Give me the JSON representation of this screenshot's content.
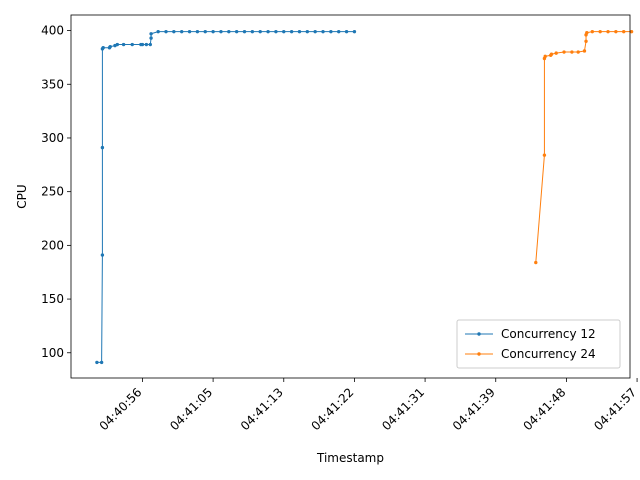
{
  "chart_data": {
    "type": "line",
    "title": "",
    "xlabel": "Timestamp",
    "ylabel": "CPU",
    "xlim": [
      -2.6,
      68.6
    ],
    "ylim": [
      76.5,
      414.5
    ],
    "legend_position": "lower-right",
    "grid": false,
    "x_ticks": [
      {
        "value": 6.5,
        "label": "04:40:56"
      },
      {
        "value": 15.5,
        "label": "04:41:05"
      },
      {
        "value": 24.5,
        "label": "04:41:13"
      },
      {
        "value": 33.5,
        "label": "04:41:22"
      },
      {
        "value": 42.5,
        "label": "04:41:31"
      },
      {
        "value": 51.5,
        "label": "04:41:39"
      },
      {
        "value": 60.5,
        "label": "04:41:48"
      },
      {
        "value": 69.5,
        "label": "04:41:57"
      }
    ],
    "y_ticks": [
      100,
      150,
      200,
      250,
      300,
      350,
      400
    ],
    "series": [
      {
        "name": "Concurrency 12",
        "color": "#1f77b4",
        "x": [
          0.7,
          1.3,
          1.4,
          1.4,
          1.4,
          1.5,
          2.3,
          2.4,
          3.0,
          3.3,
          4.1,
          5.2,
          6.3,
          6.5,
          7.0,
          7.5,
          7.6,
          7.6,
          8.5,
          9.5,
          10.5,
          11.5,
          12.5,
          13.5,
          14.5,
          15.5,
          16.5,
          17.5,
          18.5,
          19.5,
          20.5,
          21.5,
          22.5,
          23.5,
          24.5,
          25.5,
          26.5,
          27.5,
          28.5,
          29.5,
          30.5,
          31.5,
          32.5,
          33.5
        ],
        "y": [
          91,
          91,
          191,
          291,
          383,
          384,
          384,
          385,
          386,
          387,
          387,
          387,
          387,
          387,
          387,
          387,
          393,
          397,
          399,
          399,
          399,
          399,
          399,
          399,
          399,
          399,
          399,
          399,
          399,
          399,
          399,
          399,
          399,
          399,
          399,
          399,
          399,
          399,
          399,
          399,
          399,
          399,
          399,
          399
        ]
      },
      {
        "name": "Concurrency 24",
        "color": "#ff7f0e",
        "x": [
          56.6,
          57.7,
          57.7,
          57.8,
          58.5,
          58.6,
          59.2,
          60.2,
          61.2,
          62.0,
          62.8,
          63.0,
          63.0,
          63.1,
          63.8,
          64.8,
          65.8,
          66.8,
          67.8,
          68.8
        ],
        "y": [
          184,
          284,
          374,
          376,
          377,
          378,
          379,
          380,
          380,
          380,
          381,
          390,
          396,
          398,
          399,
          399,
          399,
          399,
          399,
          399
        ]
      }
    ]
  }
}
